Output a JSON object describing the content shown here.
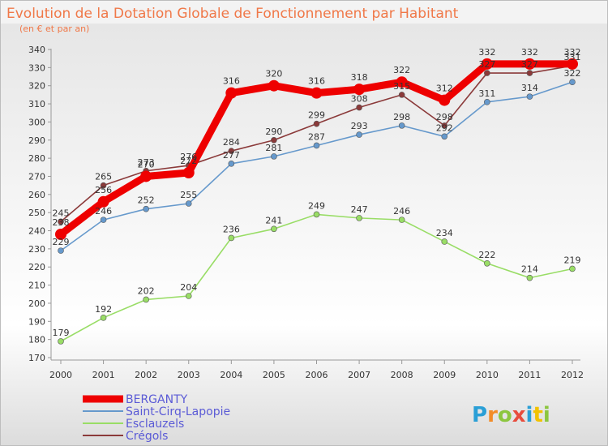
{
  "chart_data": {
    "type": "line",
    "title": "Evolution de la Dotation Globale de Fonctionnement par Habitant",
    "subtitle": "(en € et par an)",
    "x": [
      "2000",
      "2001",
      "2002",
      "2003",
      "2004",
      "2005",
      "2006",
      "2007",
      "2008",
      "2009",
      "2010",
      "2011",
      "2012"
    ],
    "ylim": [
      170,
      340
    ],
    "yticks": [
      170,
      180,
      190,
      200,
      210,
      220,
      230,
      240,
      250,
      260,
      270,
      280,
      290,
      300,
      310,
      320,
      330,
      340
    ],
    "grid": false,
    "legend_position": "bottom-left",
    "series": [
      {
        "name": "BERGANTY",
        "color": "#ee0000",
        "values": [
          238,
          256,
          270,
          272,
          316,
          320,
          316,
          318,
          322,
          312,
          332,
          332,
          332
        ]
      },
      {
        "name": "Saint-Cirq-Lapopie",
        "color": "#6699cc",
        "values": [
          229,
          246,
          252,
          255,
          277,
          281,
          287,
          293,
          298,
          292,
          311,
          314,
          322
        ]
      },
      {
        "name": "Esclauzels",
        "color": "#99dd66",
        "values": [
          179,
          192,
          202,
          204,
          236,
          241,
          249,
          247,
          246,
          234,
          222,
          214,
          219
        ]
      },
      {
        "name": "Crégols",
        "color": "#8b3a3a",
        "values": [
          245,
          265,
          273,
          276,
          284,
          290,
          299,
          308,
          315,
          298,
          327,
          327,
          331
        ]
      }
    ]
  },
  "logo": {
    "text": "Proxiti"
  }
}
